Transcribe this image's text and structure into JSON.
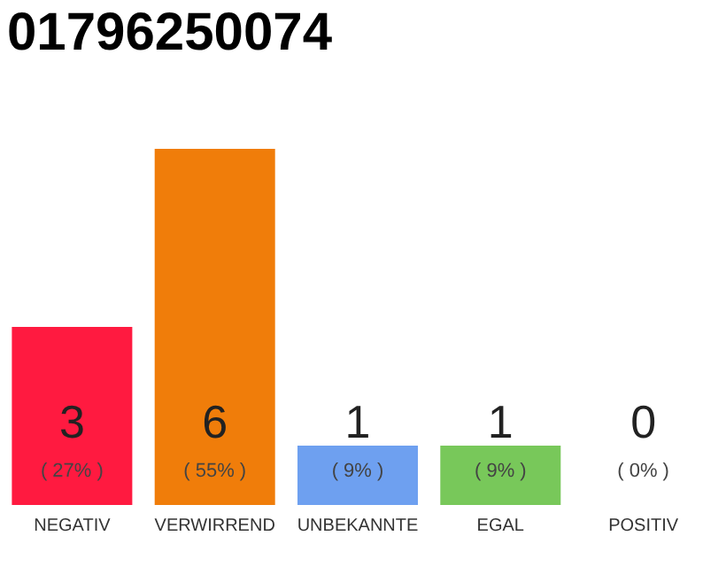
{
  "chart_data": {
    "type": "bar",
    "title": "01796250074",
    "categories": [
      "NEGATIV",
      "VERWIRREND",
      "UNBEKANNTE",
      "EGAL",
      "POSITIV"
    ],
    "values": [
      3,
      6,
      1,
      1,
      0
    ],
    "colors": [
      "#ff1a40",
      "#f07d0a",
      "#6ea0f0",
      "#78c85a",
      "#22aa44"
    ],
    "tick_labels": "x",
    "data_labels": true,
    "annotations": [
      "( 27% )",
      "( 55% )",
      "( 9% )",
      "( 9% )",
      "( 0% )"
    ]
  }
}
